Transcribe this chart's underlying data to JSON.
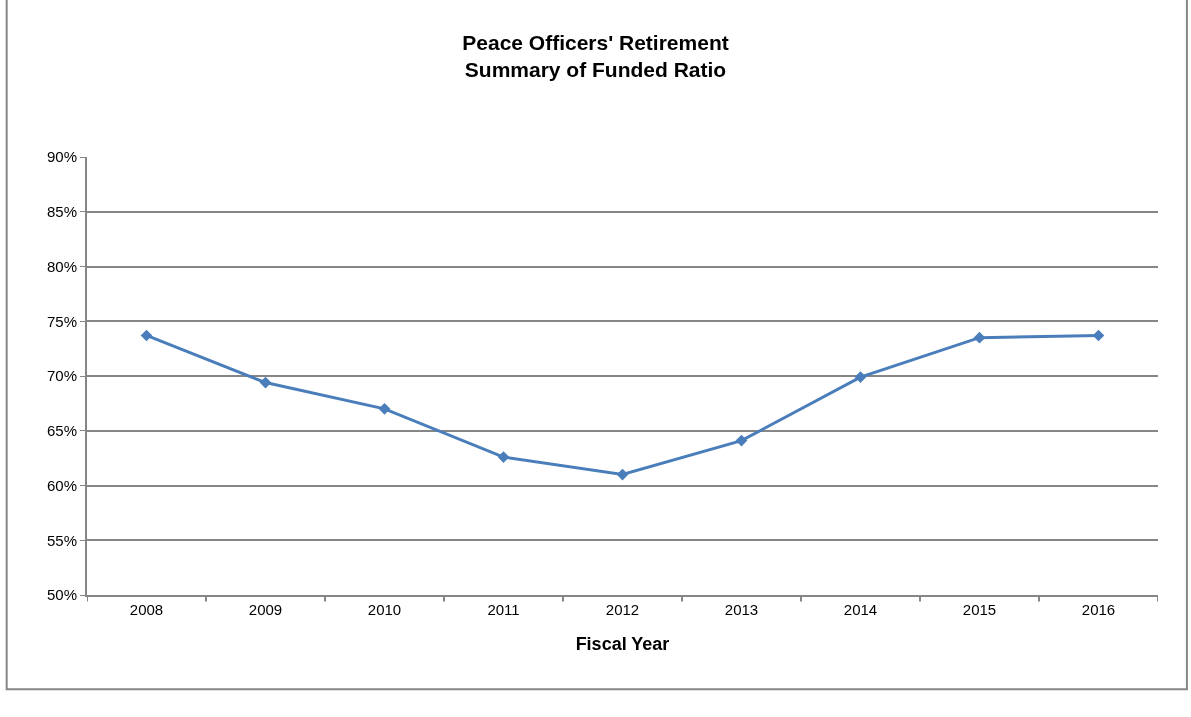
{
  "chart_data": {
    "type": "line",
    "title": "Peace Officers' Retirement\nSummary of Funded Ratio",
    "xlabel": "Fiscal Year",
    "categories": [
      "2008",
      "2009",
      "2010",
      "2011",
      "2012",
      "2013",
      "2014",
      "2015",
      "2016"
    ],
    "series": [
      {
        "color": "#4a7ebb",
        "values": [
          73.7,
          69.4,
          67.0,
          62.6,
          61.0,
          64.1,
          69.9,
          73.5,
          73.7
        ]
      }
    ],
    "ylim": [
      50,
      90
    ],
    "yticks": [
      {
        "value": 50,
        "label": "50%"
      },
      {
        "value": 55,
        "label": "55%"
      },
      {
        "value": 60,
        "label": "60%"
      },
      {
        "value": 65,
        "label": "65%"
      },
      {
        "value": 70,
        "label": "70%"
      },
      {
        "value": 75,
        "label": "75%"
      },
      {
        "value": 80,
        "label": "80%"
      },
      {
        "value": 85,
        "label": "85%"
      },
      {
        "value": 90,
        "label": "90%"
      }
    ],
    "grid": "y",
    "legend": false,
    "marker": "diamond",
    "line_style": "solid"
  }
}
